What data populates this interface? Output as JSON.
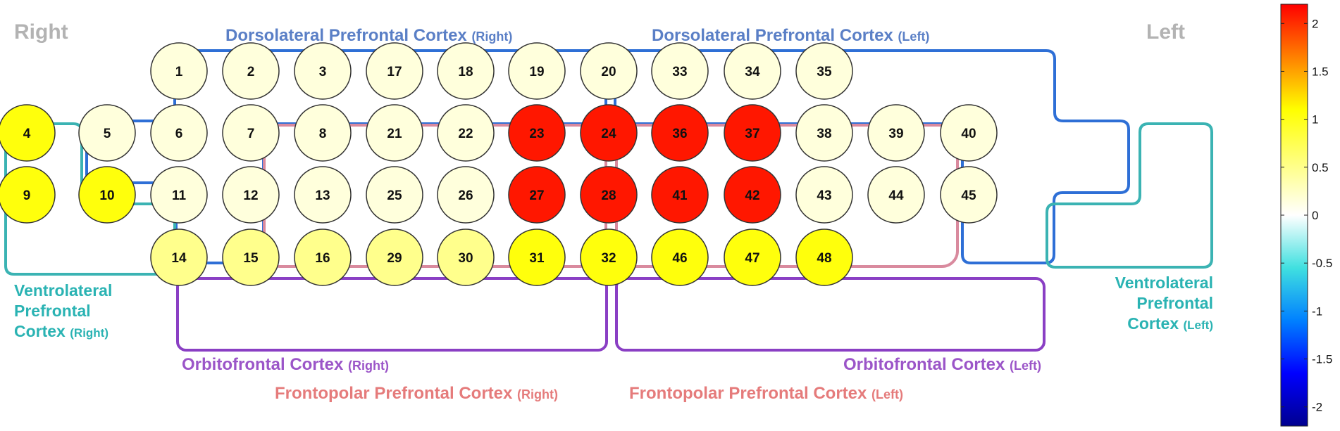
{
  "title_right": "Right",
  "title_left": "Left",
  "regions": {
    "dlpfc_right": {
      "name": "Dorsolateral Prefrontal Cortex",
      "side": "(Right)"
    },
    "dlpfc_left": {
      "name": "Dorsolateral Prefrontal Cortex",
      "side": "(Left)"
    },
    "vlpfc_right": {
      "line1": "Ventrolateral",
      "line2": "Prefrontal",
      "line3": "Cortex",
      "side": "(Right)"
    },
    "vlpfc_left": {
      "line1": "Ventrolateral",
      "line2": "Prefrontal",
      "line3": "Cortex",
      "side": "(Left)"
    },
    "ofc_right": {
      "name": "Orbitofrontal Cortex",
      "side": "(Right)"
    },
    "ofc_left": {
      "name": "Orbitofrontal Cortex",
      "side": "(Left)"
    },
    "fppfc_right": {
      "name": "Frontopolar Prefrontal Cortex",
      "side": "(Right)"
    },
    "fppfc_left": {
      "name": "Frontopolar Prefrontal Cortex",
      "side": "(Left)"
    }
  },
  "colors": {
    "dlpfc": "#2e6fd6",
    "vlpfc": "#3bb3b3",
    "ofc": "#8a3fc4",
    "fppfc": "#d98a9e",
    "side_label": "#b3b3b3",
    "dlpfc_text": "#5a7fc6",
    "vlpfc_text": "#2ab3b3",
    "ofc_text": "#9b55c8",
    "fppfc_text": "#e57b7b"
  },
  "colorbar": {
    "min": -2.2,
    "max": 2.2,
    "ticks": [
      "2",
      "1.5",
      "1",
      "0.5",
      "0",
      "-0.5",
      "-1",
      "-1.5",
      "-2"
    ],
    "tick_values": [
      2,
      1.5,
      1,
      0.5,
      0,
      -0.5,
      -1,
      -1.5,
      -2
    ]
  },
  "channels": {
    "rows": [
      [
        1,
        2,
        3,
        17,
        18,
        19,
        20,
        33,
        34,
        35
      ],
      [
        4,
        5,
        6,
        7,
        8,
        21,
        22,
        23,
        24,
        36,
        37,
        38,
        39,
        40
      ],
      [
        9,
        10,
        11,
        12,
        13,
        25,
        26,
        27,
        28,
        41,
        42,
        43,
        44,
        45
      ],
      [
        14,
        15,
        16,
        29,
        30,
        31,
        32,
        46,
        47,
        48
      ]
    ],
    "values": {
      "1": 0.15,
      "2": 0.15,
      "3": 0.15,
      "17": 0.15,
      "18": 0.15,
      "19": 0.15,
      "20": 0.15,
      "33": 0.15,
      "34": 0.15,
      "35": 0.15,
      "4": 1.05,
      "5": 0.15,
      "6": 0.15,
      "7": 0.15,
      "8": 0.15,
      "21": 0.15,
      "22": 0.15,
      "23": 2.1,
      "24": 2.1,
      "36": 2.1,
      "37": 2.1,
      "38": 0.15,
      "39": 0.15,
      "40": 0.15,
      "9": 1.05,
      "10": 1.05,
      "11": 0.15,
      "12": 0.15,
      "13": 0.15,
      "25": 0.15,
      "26": 0.15,
      "27": 2.1,
      "28": 2.1,
      "41": 2.1,
      "42": 2.1,
      "43": 0.15,
      "44": 0.15,
      "45": 0.15,
      "14": 0.5,
      "15": 0.5,
      "16": 0.5,
      "29": 0.5,
      "30": 0.5,
      "31": 1.05,
      "32": 1.05,
      "46": 1.05,
      "47": 1.05,
      "48": 1.05
    }
  }
}
